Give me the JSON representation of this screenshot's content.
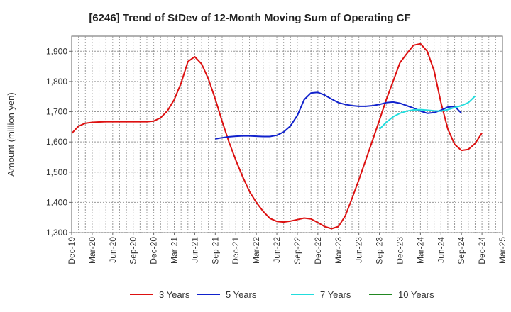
{
  "chart_data": {
    "type": "line",
    "title": "[6246]  Trend of StDev of 12-Month Moving Sum of Operating CF",
    "xlabel": "",
    "ylabel": "Amount (million yen)",
    "ylim": [
      1300,
      1950
    ],
    "yticks": [
      1300,
      1400,
      1500,
      1600,
      1700,
      1800,
      1900
    ],
    "ytick_labels": [
      "1,300",
      "1,400",
      "1,500",
      "1,600",
      "1,700",
      "1,800",
      "1,900"
    ],
    "x_tick_labels": [
      "Dec-19",
      "Mar-20",
      "Jun-20",
      "Sep-20",
      "Dec-20",
      "Mar-21",
      "Jun-21",
      "Sep-21",
      "Dec-21",
      "Mar-22",
      "Jun-22",
      "Sep-22",
      "Dec-22",
      "Mar-23",
      "Jun-23",
      "Sep-23",
      "Dec-23",
      "Mar-24",
      "Jun-24",
      "Sep-24",
      "Dec-24",
      "Mar-25"
    ],
    "months_total": 63,
    "series": [
      {
        "name": "3 Years",
        "color": "#dd1111",
        "start_index": 0,
        "values": [
          1628,
          1652,
          1662,
          1665,
          1666,
          1667,
          1667,
          1667,
          1667,
          1667,
          1667,
          1667,
          1669,
          1680,
          1703,
          1740,
          1795,
          1866,
          1882,
          1858,
          1808,
          1742,
          1668,
          1600,
          1540,
          1485,
          1436,
          1400,
          1370,
          1347,
          1337,
          1335,
          1338,
          1343,
          1348,
          1345,
          1333,
          1320,
          1313,
          1320,
          1355,
          1413,
          1475,
          1540,
          1605,
          1672,
          1740,
          1800,
          1862,
          1892,
          1920,
          1925,
          1900,
          1835,
          1730,
          1643,
          1592,
          1572,
          1575,
          1595,
          1630
        ]
      },
      {
        "name": "5 Years",
        "color": "#1122cc",
        "start_index": 21,
        "values": [
          1610,
          1614,
          1617,
          1619,
          1620,
          1620,
          1619,
          1618,
          1618,
          1622,
          1633,
          1653,
          1688,
          1740,
          1762,
          1764,
          1755,
          1742,
          1730,
          1724,
          1720,
          1718,
          1718,
          1720,
          1724,
          1730,
          1732,
          1728,
          1720,
          1712,
          1702,
          1695,
          1697,
          1705,
          1715,
          1718,
          1695
        ]
      },
      {
        "name": "7 Years",
        "color": "#22dddd",
        "start_index": 45,
        "values": [
          1642,
          1665,
          1683,
          1695,
          1702,
          1706,
          1707,
          1705,
          1703,
          1702,
          1707,
          1714,
          1720,
          1730,
          1752
        ]
      },
      {
        "name": "10 Years",
        "color": "#228822",
        "start_index": 0,
        "values": []
      }
    ]
  }
}
